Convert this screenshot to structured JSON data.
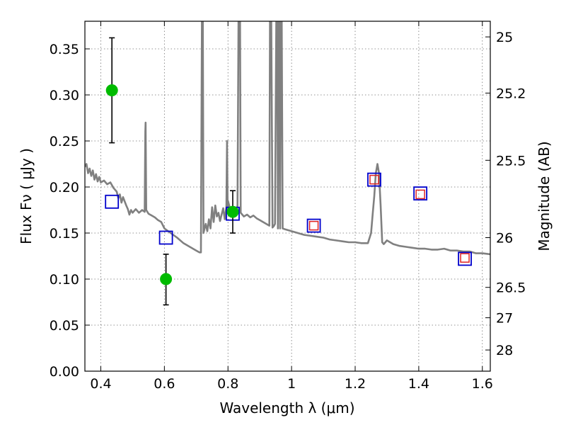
{
  "chart_data": {
    "type": "scatter",
    "xlabel": "Wavelength  λ (μm)",
    "ylabel": "Flux  Fν  ( μJy )",
    "y2label": "Magnitude (AB)",
    "xlim": [
      0.35,
      1.625
    ],
    "ylim": [
      0.0,
      0.38
    ],
    "grid": true,
    "x_ticks": [
      0.4,
      0.6,
      0.8,
      1.0,
      1.2,
      1.4,
      1.6
    ],
    "x_tick_labels": [
      "0.4",
      "0.6",
      "0.8",
      "1",
      "1.2",
      "1.4",
      "1.6"
    ],
    "y_ticks": [
      0.0,
      0.05,
      0.1,
      0.15,
      0.2,
      0.25,
      0.3,
      0.35
    ],
    "y_tick_labels": [
      "0.00",
      "0.05",
      "0.10",
      "0.15",
      "0.20",
      "0.25",
      "0.30",
      "0.35"
    ],
    "y2_ticks": [
      {
        "label": "25",
        "flux": 0.363
      },
      {
        "label": "25.2",
        "flux": 0.302
      },
      {
        "label": "25.5",
        "flux": 0.229
      },
      {
        "label": "26",
        "flux": 0.145
      },
      {
        "label": "26.5",
        "flux": 0.091
      },
      {
        "label": "27",
        "flux": 0.058
      },
      {
        "label": "28",
        "flux": 0.023
      }
    ],
    "series": [
      {
        "marker": "model-spectrum",
        "color": "#808080",
        "points": [
          [
            0.35,
            0.222
          ],
          [
            0.355,
            0.225
          ],
          [
            0.36,
            0.215
          ],
          [
            0.365,
            0.22
          ],
          [
            0.37,
            0.212
          ],
          [
            0.375,
            0.218
          ],
          [
            0.38,
            0.208
          ],
          [
            0.385,
            0.214
          ],
          [
            0.39,
            0.206
          ],
          [
            0.395,
            0.211
          ],
          [
            0.4,
            0.205
          ],
          [
            0.41,
            0.207
          ],
          [
            0.42,
            0.203
          ],
          [
            0.43,
            0.205
          ],
          [
            0.44,
            0.199
          ],
          [
            0.45,
            0.195
          ],
          [
            0.455,
            0.188
          ],
          [
            0.46,
            0.192
          ],
          [
            0.465,
            0.183
          ],
          [
            0.47,
            0.189
          ],
          [
            0.48,
            0.18
          ],
          [
            0.485,
            0.176
          ],
          [
            0.49,
            0.17
          ],
          [
            0.495,
            0.175
          ],
          [
            0.5,
            0.172
          ],
          [
            0.51,
            0.176
          ],
          [
            0.52,
            0.172
          ],
          [
            0.53,
            0.175
          ],
          [
            0.538,
            0.173
          ],
          [
            0.54,
            0.26
          ],
          [
            0.541,
            0.27
          ],
          [
            0.543,
            0.175
          ],
          [
            0.55,
            0.171
          ],
          [
            0.56,
            0.169
          ],
          [
            0.57,
            0.167
          ],
          [
            0.58,
            0.164
          ],
          [
            0.59,
            0.162
          ],
          [
            0.6,
            0.155
          ],
          [
            0.62,
            0.15
          ],
          [
            0.64,
            0.145
          ],
          [
            0.66,
            0.139
          ],
          [
            0.68,
            0.135
          ],
          [
            0.7,
            0.131
          ],
          [
            0.71,
            0.129
          ],
          [
            0.715,
            0.129
          ],
          [
            0.718,
            0.38
          ],
          [
            0.721,
            0.38
          ],
          [
            0.723,
            0.15
          ],
          [
            0.73,
            0.16
          ],
          [
            0.735,
            0.152
          ],
          [
            0.74,
            0.165
          ],
          [
            0.745,
            0.155
          ],
          [
            0.75,
            0.178
          ],
          [
            0.755,
            0.162
          ],
          [
            0.76,
            0.18
          ],
          [
            0.765,
            0.168
          ],
          [
            0.77,
            0.172
          ],
          [
            0.775,
            0.163
          ],
          [
            0.78,
            0.17
          ],
          [
            0.785,
            0.177
          ],
          [
            0.79,
            0.165
          ],
          [
            0.795,
            0.178
          ],
          [
            0.797,
            0.25
          ],
          [
            0.799,
            0.176
          ],
          [
            0.8,
            0.185
          ],
          [
            0.81,
            0.172
          ],
          [
            0.82,
            0.178
          ],
          [
            0.825,
            0.17
          ],
          [
            0.83,
            0.18
          ],
          [
            0.833,
            0.38
          ],
          [
            0.838,
            0.38
          ],
          [
            0.84,
            0.172
          ],
          [
            0.85,
            0.168
          ],
          [
            0.86,
            0.17
          ],
          [
            0.87,
            0.167
          ],
          [
            0.88,
            0.169
          ],
          [
            0.89,
            0.166
          ],
          [
            0.9,
            0.164
          ],
          [
            0.91,
            0.162
          ],
          [
            0.92,
            0.16
          ],
          [
            0.93,
            0.158
          ],
          [
            0.932,
            0.38
          ],
          [
            0.936,
            0.38
          ],
          [
            0.94,
            0.156
          ],
          [
            0.945,
            0.158
          ],
          [
            0.948,
            0.16
          ],
          [
            0.952,
            0.38
          ],
          [
            0.955,
            0.38
          ],
          [
            0.957,
            0.155
          ],
          [
            0.959,
            0.38
          ],
          [
            0.962,
            0.38
          ],
          [
            0.964,
            0.155
          ],
          [
            0.966,
            0.38
          ],
          [
            0.969,
            0.38
          ],
          [
            0.972,
            0.155
          ],
          [
            0.98,
            0.154
          ],
          [
            1.0,
            0.152
          ],
          [
            1.02,
            0.15
          ],
          [
            1.04,
            0.148
          ],
          [
            1.06,
            0.147
          ],
          [
            1.08,
            0.146
          ],
          [
            1.1,
            0.145
          ],
          [
            1.12,
            0.143
          ],
          [
            1.14,
            0.142
          ],
          [
            1.16,
            0.141
          ],
          [
            1.18,
            0.14
          ],
          [
            1.2,
            0.14
          ],
          [
            1.22,
            0.139
          ],
          [
            1.24,
            0.139
          ],
          [
            1.25,
            0.15
          ],
          [
            1.255,
            0.17
          ],
          [
            1.26,
            0.19
          ],
          [
            1.265,
            0.215
          ],
          [
            1.27,
            0.225
          ],
          [
            1.275,
            0.215
          ],
          [
            1.28,
            0.18
          ],
          [
            1.285,
            0.14
          ],
          [
            1.29,
            0.138
          ],
          [
            1.3,
            0.142
          ],
          [
            1.32,
            0.138
          ],
          [
            1.34,
            0.136
          ],
          [
            1.36,
            0.135
          ],
          [
            1.38,
            0.134
          ],
          [
            1.4,
            0.133
          ],
          [
            1.42,
            0.133
          ],
          [
            1.44,
            0.132
          ],
          [
            1.46,
            0.132
          ],
          [
            1.48,
            0.133
          ],
          [
            1.5,
            0.131
          ],
          [
            1.52,
            0.131
          ],
          [
            1.54,
            0.13
          ],
          [
            1.56,
            0.13
          ],
          [
            1.58,
            0.128
          ],
          [
            1.6,
            0.128
          ],
          [
            1.625,
            0.127
          ]
        ]
      },
      {
        "marker": "model-photometry",
        "color": "#0000cc",
        "points": [
          [
            0.435,
            0.184
          ],
          [
            0.605,
            0.145
          ],
          [
            0.815,
            0.171
          ],
          [
            1.07,
            0.158
          ],
          [
            1.26,
            0.208
          ],
          [
            1.405,
            0.193
          ],
          [
            1.545,
            0.122
          ]
        ]
      },
      {
        "marker": "observed-photometry-nir",
        "color": "#dd2222",
        "points": [
          [
            1.07,
            0.158
          ],
          [
            1.26,
            0.208
          ],
          [
            1.405,
            0.192
          ],
          [
            1.545,
            0.123
          ]
        ]
      },
      {
        "marker": "observed-photometry-optical",
        "color": "#00bb00",
        "points": [
          {
            "x": 0.435,
            "y": 0.305,
            "err_low": 0.248,
            "err_high": 0.362
          },
          {
            "x": 0.605,
            "y": 0.1,
            "err_low": 0.072,
            "err_high": 0.127
          },
          {
            "x": 0.815,
            "y": 0.173,
            "err_low": 0.15,
            "err_high": 0.196
          }
        ]
      }
    ]
  }
}
